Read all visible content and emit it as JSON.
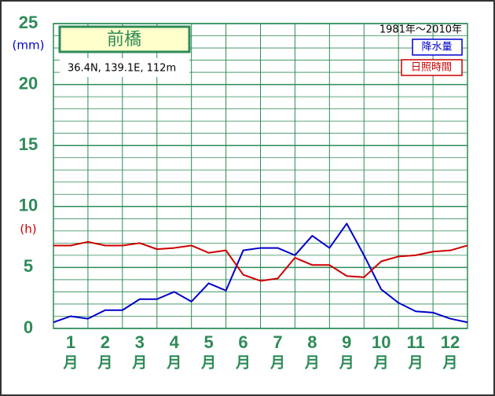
{
  "chart_data": {
    "type": "line",
    "title": "前橋",
    "location_info": "36.4N,  139.1E,  112m",
    "period": "1981年〜2010年",
    "y_unit_precip": "(mm)",
    "y_unit_sun": "(h)",
    "categories": [
      "1",
      "2",
      "3",
      "4",
      "5",
      "6",
      "7",
      "8",
      "9",
      "10",
      "11",
      "12"
    ],
    "month_unit": "月",
    "x": [
      0,
      0.5,
      1,
      1.5,
      2,
      2.5,
      3,
      3.5,
      4,
      4.5,
      5,
      5.5,
      6,
      6.5,
      7,
      7.5,
      8,
      8.5,
      9,
      9.5,
      10,
      10.5,
      11,
      11.5,
      12
    ],
    "xlim": [
      0,
      12
    ],
    "xticks": [
      0,
      1,
      2,
      3,
      4,
      5,
      6,
      7,
      8,
      9,
      10,
      11,
      12
    ],
    "ylim": [
      0,
      25
    ],
    "yticks": [
      0,
      5,
      10,
      15,
      20,
      25
    ],
    "yminor": [
      1,
      2,
      3,
      4,
      6,
      7,
      8,
      9,
      11,
      12,
      13,
      14,
      16,
      17,
      18,
      19,
      21,
      22,
      23,
      24
    ],
    "grid": true,
    "series": [
      {
        "name": "降水量",
        "color": "#0000cc",
        "values": [
          0.5,
          1.0,
          0.8,
          1.5,
          1.5,
          2.4,
          2.4,
          3.0,
          2.2,
          3.7,
          3.1,
          6.4,
          6.6,
          6.6,
          6.0,
          7.6,
          6.6,
          8.6,
          6.0,
          3.2,
          2.1,
          1.4,
          1.3,
          0.8,
          0.5
        ]
      },
      {
        "name": "日照時間",
        "color": "#cc0000",
        "values": [
          6.8,
          6.8,
          7.1,
          6.8,
          6.8,
          7.0,
          6.5,
          6.6,
          6.8,
          6.2,
          6.4,
          4.4,
          3.9,
          4.1,
          5.8,
          5.2,
          5.2,
          4.3,
          4.2,
          5.5,
          5.9,
          6.0,
          6.3,
          6.4,
          6.8
        ]
      }
    ]
  }
}
